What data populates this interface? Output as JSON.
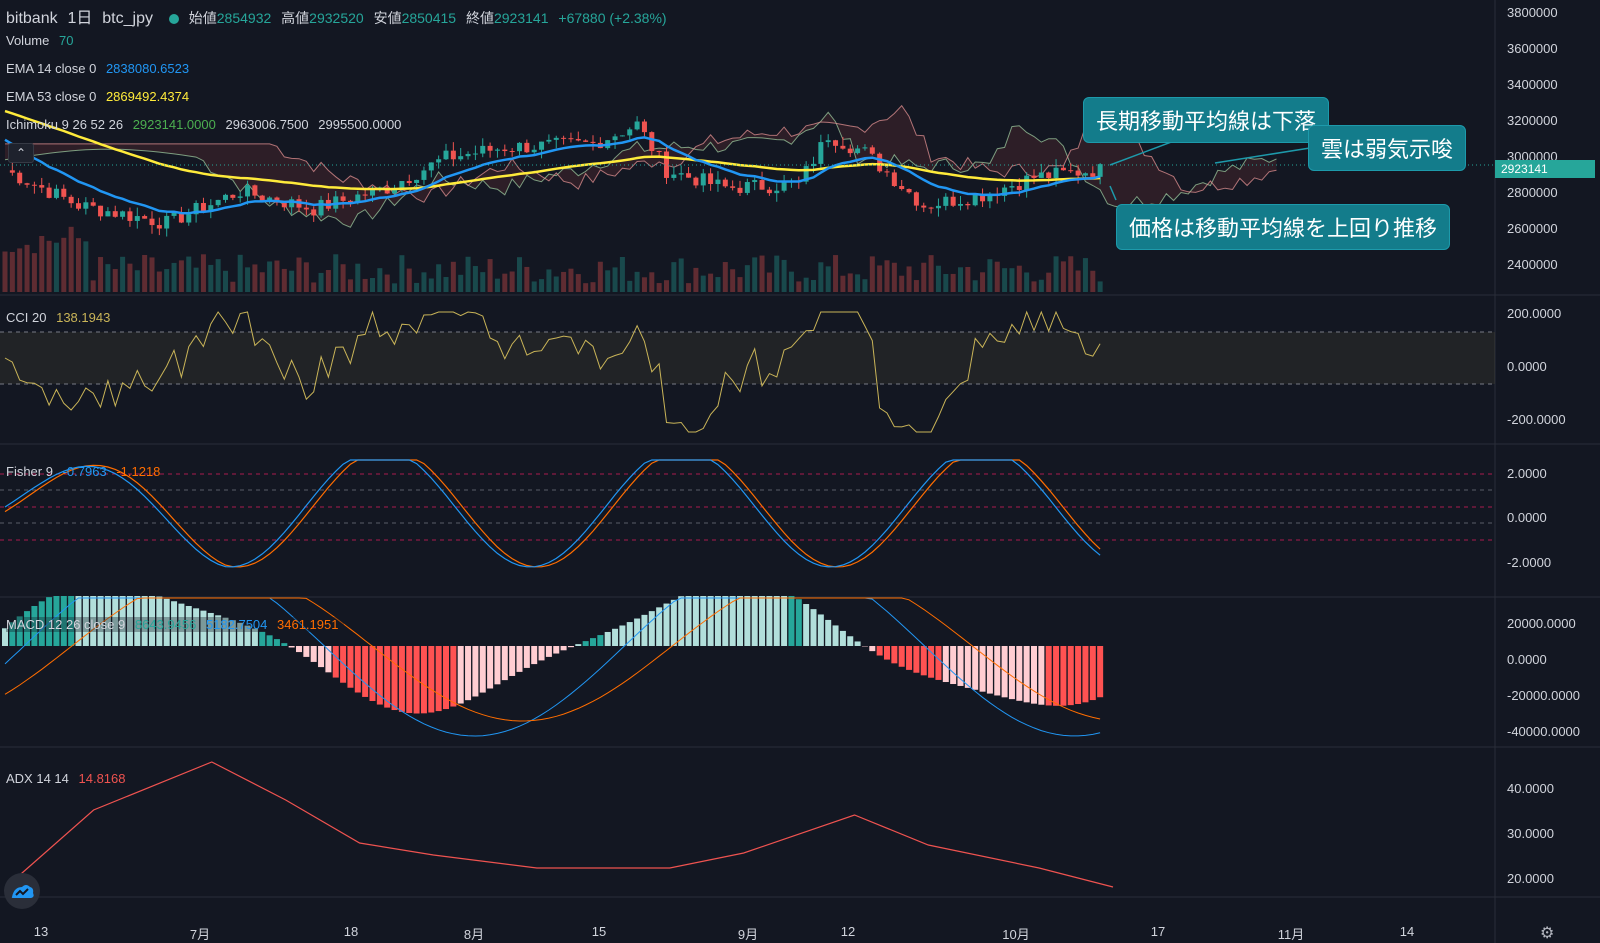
{
  "header": {
    "exchange": "bitbank",
    "interval": "1日",
    "symbol": "btc_jpy",
    "open_label": "始値",
    "open": "2854932",
    "high_label": "高値",
    "high": "2932520",
    "low_label": "安値",
    "low": "2850415",
    "close_label": "終値",
    "close": "2923141",
    "change": "+67880 (+2.38%)"
  },
  "indicators": {
    "volume": {
      "name": "Volume",
      "value": "70"
    },
    "ema14": {
      "name": "EMA 14 close 0",
      "value": "2838080.6523"
    },
    "ema53": {
      "name": "EMA 53 close 0",
      "value": "2869492.4374"
    },
    "ichimoku": {
      "name": "Ichimoku 9 26 52 26",
      "v1": "2923141.0000",
      "v2": "2963006.7500",
      "v3": "2995500.0000"
    },
    "cci": {
      "name": "CCI 20",
      "value": "138.1943"
    },
    "fisher": {
      "name": "Fisher 9",
      "v1": "-0.7963",
      "v2": "-1.1218"
    },
    "macd": {
      "name": "MACD 12 26 close 9",
      "v1": "8643.9456",
      "v2": "5182.7504",
      "v3": "3461.1951"
    },
    "adx": {
      "name": "ADX 14 14",
      "value": "14.8168"
    }
  },
  "price_axis": [
    "3800000",
    "3600000",
    "3400000",
    "3200000",
    "3000000",
    "2800000",
    "2600000",
    "2400000"
  ],
  "current_price_tag": "2923141",
  "cci_axis": [
    "200.0000",
    "0.0000",
    "-200.0000"
  ],
  "fisher_axis": [
    "2.0000",
    "0.0000",
    "-2.0000"
  ],
  "macd_axis": [
    "20000.0000",
    "0.0000",
    "-20000.0000",
    "-40000.0000"
  ],
  "adx_axis": [
    "40.0000",
    "30.0000",
    "20.0000"
  ],
  "time_axis": [
    "13",
    "7月",
    "18",
    "8月",
    "15",
    "9月",
    "12",
    "10月",
    "17",
    "11月",
    "14"
  ],
  "callouts": {
    "long_ma": "長期移動平均線は下落",
    "cloud": "雲は弱気示唆",
    "price": "価格は移動平均線を上回り推移"
  },
  "colors": {
    "background": "#131722",
    "up": "#26a69a",
    "down": "#ef5350",
    "ema14": "#2196f3",
    "ema53": "#ffeb3b",
    "cci": "#c9b458",
    "fisher_blue": "#2196f3",
    "fisher_orange": "#ff6d00",
    "adx": "#ef5350",
    "callout": "#137c8b"
  },
  "icons": {
    "collapse": "chevron-up-icon",
    "logo": "tradingview-logo-icon",
    "settings": "gear-icon"
  },
  "collapse_glyph": "⌃",
  "settings_glyph": "⚙"
}
